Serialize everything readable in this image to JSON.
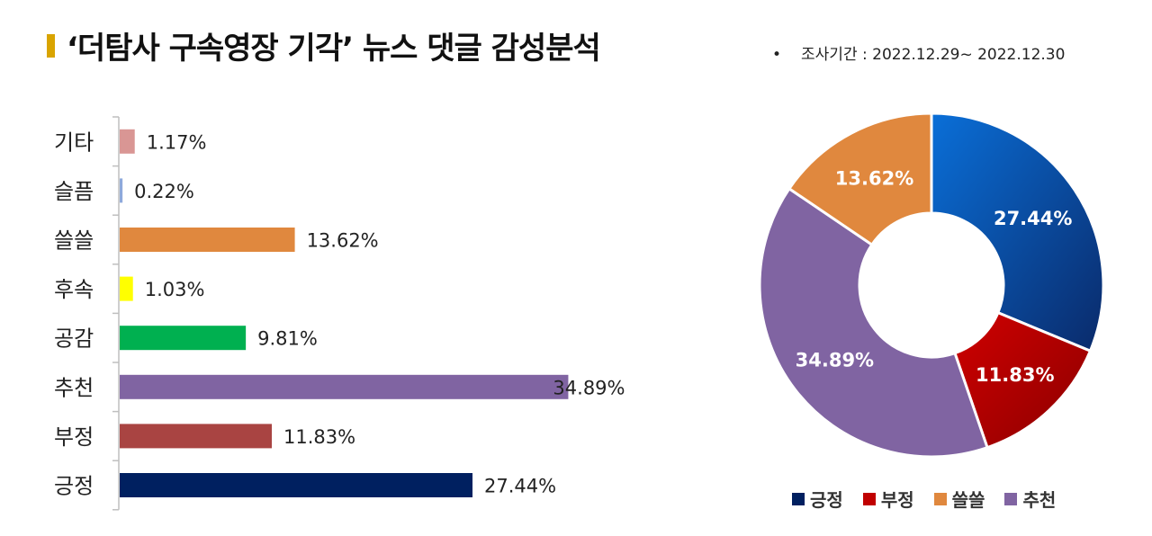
{
  "header": {
    "title": "‘더탐사 구속영장 기각’ 뉴스 댓글 감성분석",
    "period_bullet": "•",
    "period": "조사기간 : 2022.12.29~ 2022.12.30"
  },
  "chart_data": [
    {
      "type": "bar",
      "orientation": "horizontal",
      "categories": [
        "기타",
        "슬픔",
        "쓸쓸",
        "후속",
        "공감",
        "추천",
        "부정",
        "긍정"
      ],
      "values": [
        1.17,
        0.22,
        13.62,
        1.03,
        9.81,
        34.89,
        11.83,
        27.44
      ],
      "value_labels": [
        "1.17%",
        "0.22%",
        "13.62%",
        "1.03%",
        "9.81%",
        "34.89%",
        "11.83%",
        "27.44%"
      ],
      "colors": [
        "#d99694",
        "#8ea9db",
        "#e0883e",
        "#ffff00",
        "#00b050",
        "#8064a2",
        "#a94442",
        "#002060"
      ],
      "xlim": [
        0,
        35
      ],
      "grid": false
    },
    {
      "type": "pie",
      "style": "donut",
      "categories": [
        "긍정",
        "부정",
        "쓸쓸",
        "추천"
      ],
      "values": [
        27.44,
        11.83,
        13.62,
        34.89
      ],
      "value_labels": [
        "27.44%",
        "11.83%",
        "13.62%",
        "34.89%"
      ],
      "slice_order": [
        "긍정",
        "부정",
        "추천",
        "쓸쓸"
      ],
      "colors": {
        "긍정": "#0b5cc4",
        "부정": "#c00000",
        "쓸쓸": "#e0883e",
        "추천": "#8064a2"
      },
      "legend_position": "bottom"
    }
  ],
  "legend": {
    "items": [
      {
        "label": "긍정",
        "color": "#002060"
      },
      {
        "label": "부정",
        "color": "#c00000"
      },
      {
        "label": "쓸쓸",
        "color": "#e0883e"
      },
      {
        "label": "추천",
        "color": "#8064a2"
      }
    ]
  }
}
